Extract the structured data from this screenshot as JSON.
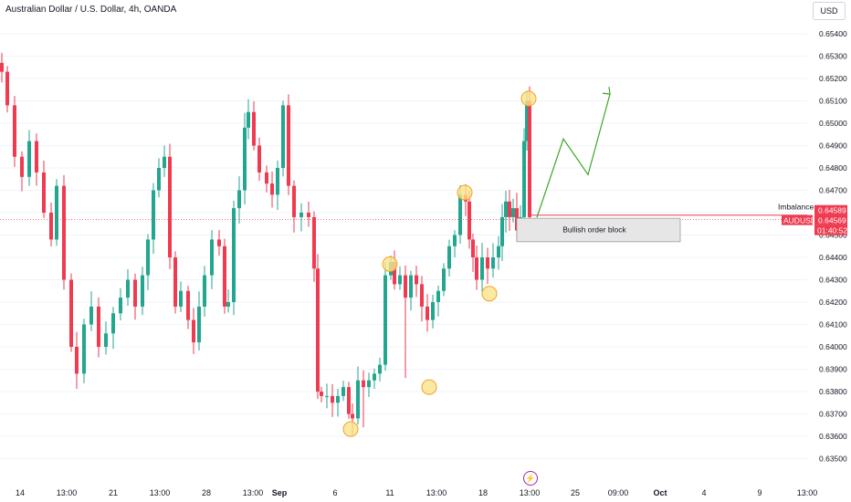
{
  "header": {
    "title": "Australian Dollar / U.S. Dollar, 4h, OANDA",
    "currency": "USD"
  },
  "markers": {
    "lightning_icon": "⚡"
  },
  "colors": {
    "up": "#22a68f",
    "down": "#ef3a4f",
    "arrow": "#3aa626",
    "highlight_fill": "#fbe38b",
    "highlight_stroke": "#f2a12b",
    "price_line": "#ef3a4f",
    "grid": "#f0f3fa"
  },
  "chart_data": {
    "type": "candlestick",
    "title": "Australian Dollar / U.S. Dollar, 4h, OANDA",
    "y_ticks": [
      "0.65400",
      "0.65300",
      "0.65200",
      "0.65100",
      "0.65000",
      "0.64900",
      "0.64800",
      "0.64700",
      "0.64600",
      "0.64500",
      "0.64400",
      "0.64300",
      "0.64200",
      "0.64100",
      "0.64000",
      "0.63900",
      "0.63800",
      "0.63700",
      "0.63600",
      "0.63500"
    ],
    "x_ticks": [
      "14",
      "13:00",
      "21",
      "13:00",
      "28",
      "13:00",
      "Sep",
      "6",
      "11",
      "13:00",
      "18",
      "13:00",
      "25",
      "09:00",
      "Oct",
      "4",
      "9",
      "13:00"
    ],
    "ylim": [
      0.6345,
      0.6545
    ],
    "current_price": "0.64569",
    "imbalance_price": "0.64589",
    "labels": {
      "imbalance": "Imbalance",
      "symbol": "AUDUSD",
      "countdown": "01:40:52",
      "order_block": "Bullish order block"
    },
    "highlighted_levels": [
      0.63632,
      0.6382,
      0.6437,
      0.64238,
      0.6469,
      0.6511
    ],
    "projection": [
      0.64579,
      0.6493,
      0.6477,
      0.6513
    ]
  }
}
